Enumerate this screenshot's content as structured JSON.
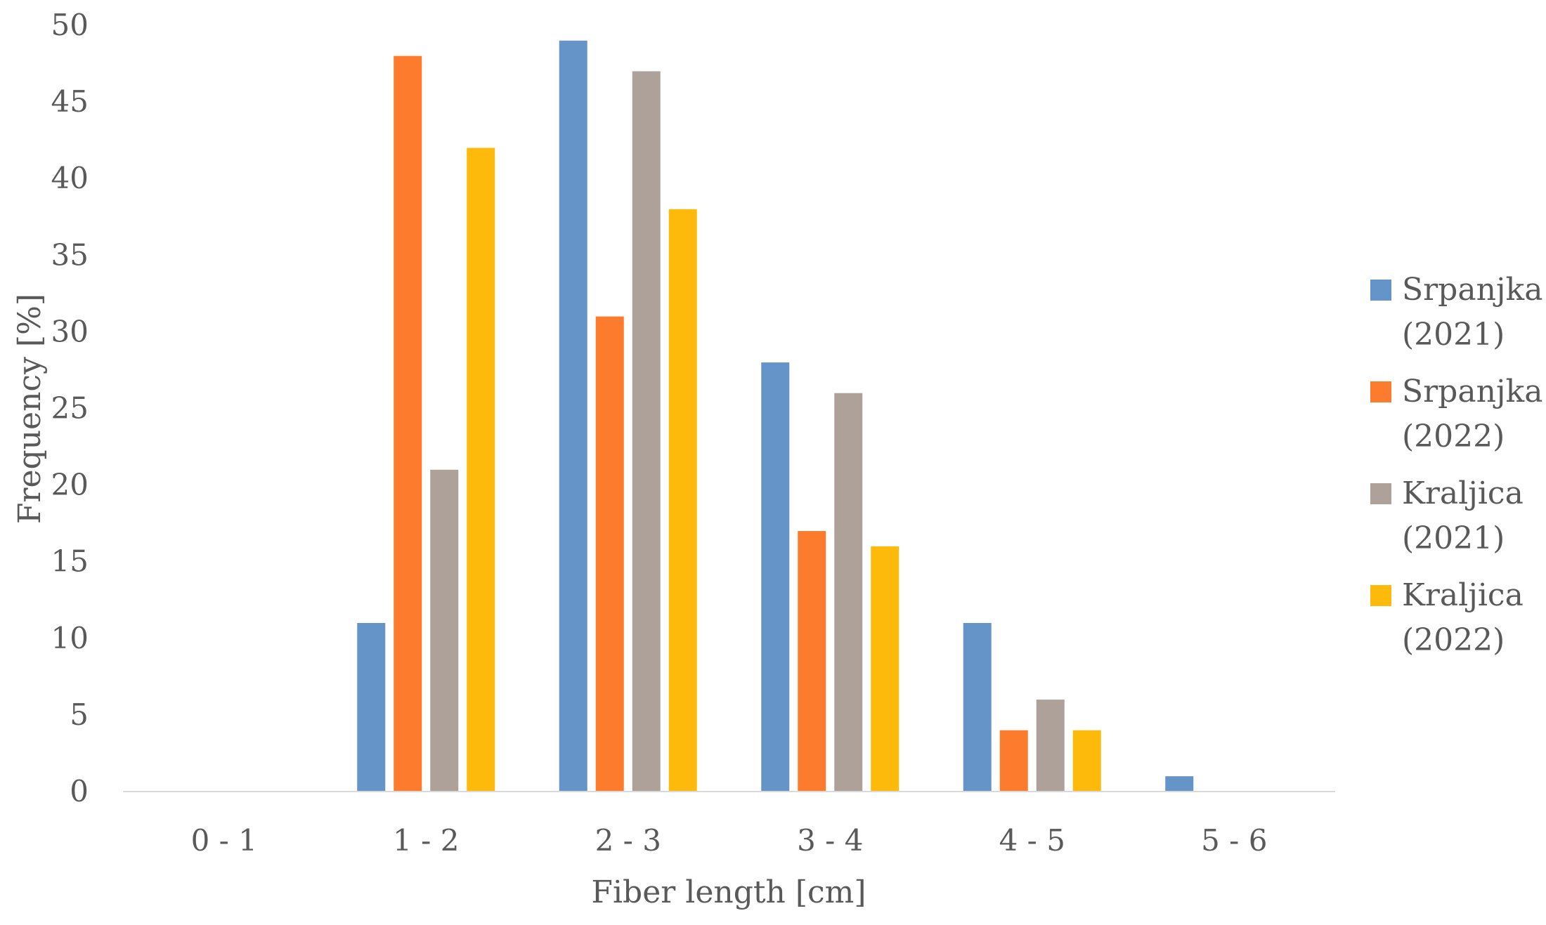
{
  "chart_data": {
    "type": "bar",
    "xlabel": "Fiber length [cm]",
    "ylabel": "Frequency [%]",
    "ylim": [
      0,
      50
    ],
    "yticks": [
      "0",
      "5",
      "10",
      "15",
      "20",
      "25",
      "30",
      "35",
      "40",
      "45",
      "50"
    ],
    "categories": [
      "0 - 1",
      "1 - 2",
      "2 - 3",
      "3 - 4",
      "4 - 5",
      "5 - 6"
    ],
    "grid": false,
    "legend_position": "right",
    "series": [
      {
        "name": "Srpanjka (2021)",
        "name_lines": [
          "Srpanjka",
          "(2021)"
        ],
        "color": "#6595c8",
        "values": [
          0,
          11,
          49,
          28,
          11,
          1
        ]
      },
      {
        "name": "Srpanjka (2022)",
        "name_lines": [
          "Srpanjka",
          "(2022)"
        ],
        "color": "#fd7b2d",
        "values": [
          0,
          48,
          31,
          17,
          4,
          0
        ]
      },
      {
        "name": "Kraljica (2021)",
        "name_lines": [
          "Kraljica",
          "(2021)"
        ],
        "color": "#ada19a",
        "values": [
          0,
          21,
          47,
          26,
          6,
          0
        ]
      },
      {
        "name": "Kraljica (2022)",
        "name_lines": [
          "Kraljica",
          "(2022)"
        ],
        "color": "#feba0a",
        "values": [
          0,
          42,
          38,
          16,
          4,
          0
        ]
      }
    ]
  }
}
